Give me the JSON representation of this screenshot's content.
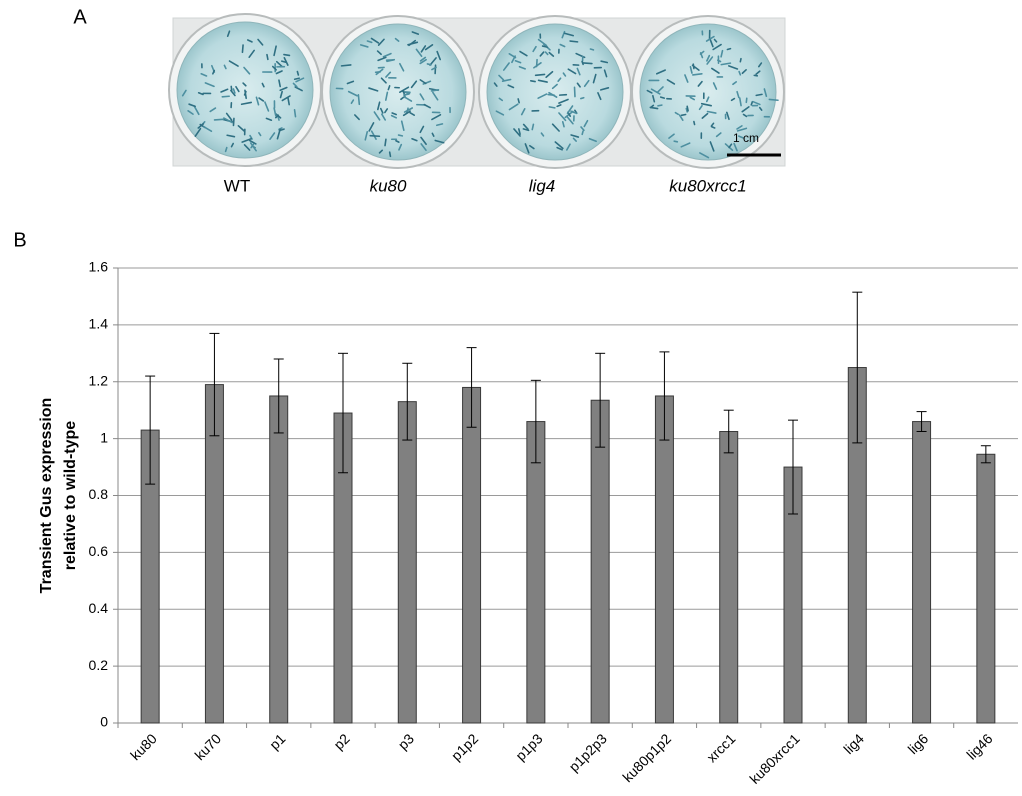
{
  "panel_a": {
    "label": "A",
    "wells": [
      "WT",
      "ku80",
      "lig4",
      "ku80xrcc1"
    ],
    "scale_bar": "1 cm"
  },
  "panel_b_label": "B",
  "chart_data": {
    "type": "bar",
    "ylabel": [
      "Transient Gus expression",
      "relative to wild-type"
    ],
    "categories": [
      "ku80",
      "ku70",
      "p1",
      "p2",
      "p3",
      "p1p2",
      "p1p3",
      "p1p2p3",
      "ku80p1p2",
      "xrcc1",
      "ku80xrcc1",
      "lig4",
      "lig6",
      "lig46"
    ],
    "values": [
      1.03,
      1.19,
      1.15,
      1.09,
      1.13,
      1.18,
      1.06,
      1.135,
      1.15,
      1.025,
      0.9,
      1.25,
      1.06,
      0.945
    ],
    "errors": [
      0.19,
      0.18,
      0.13,
      0.21,
      0.135,
      0.14,
      0.145,
      0.165,
      0.155,
      0.075,
      0.165,
      0.265,
      0.035,
      0.03
    ],
    "color": "#808080",
    "ylim": [
      0,
      1.6
    ],
    "yticks": [
      0,
      0.2,
      0.4,
      0.6,
      0.8,
      1,
      1.2,
      1.4,
      1.6
    ],
    "grid": true
  }
}
